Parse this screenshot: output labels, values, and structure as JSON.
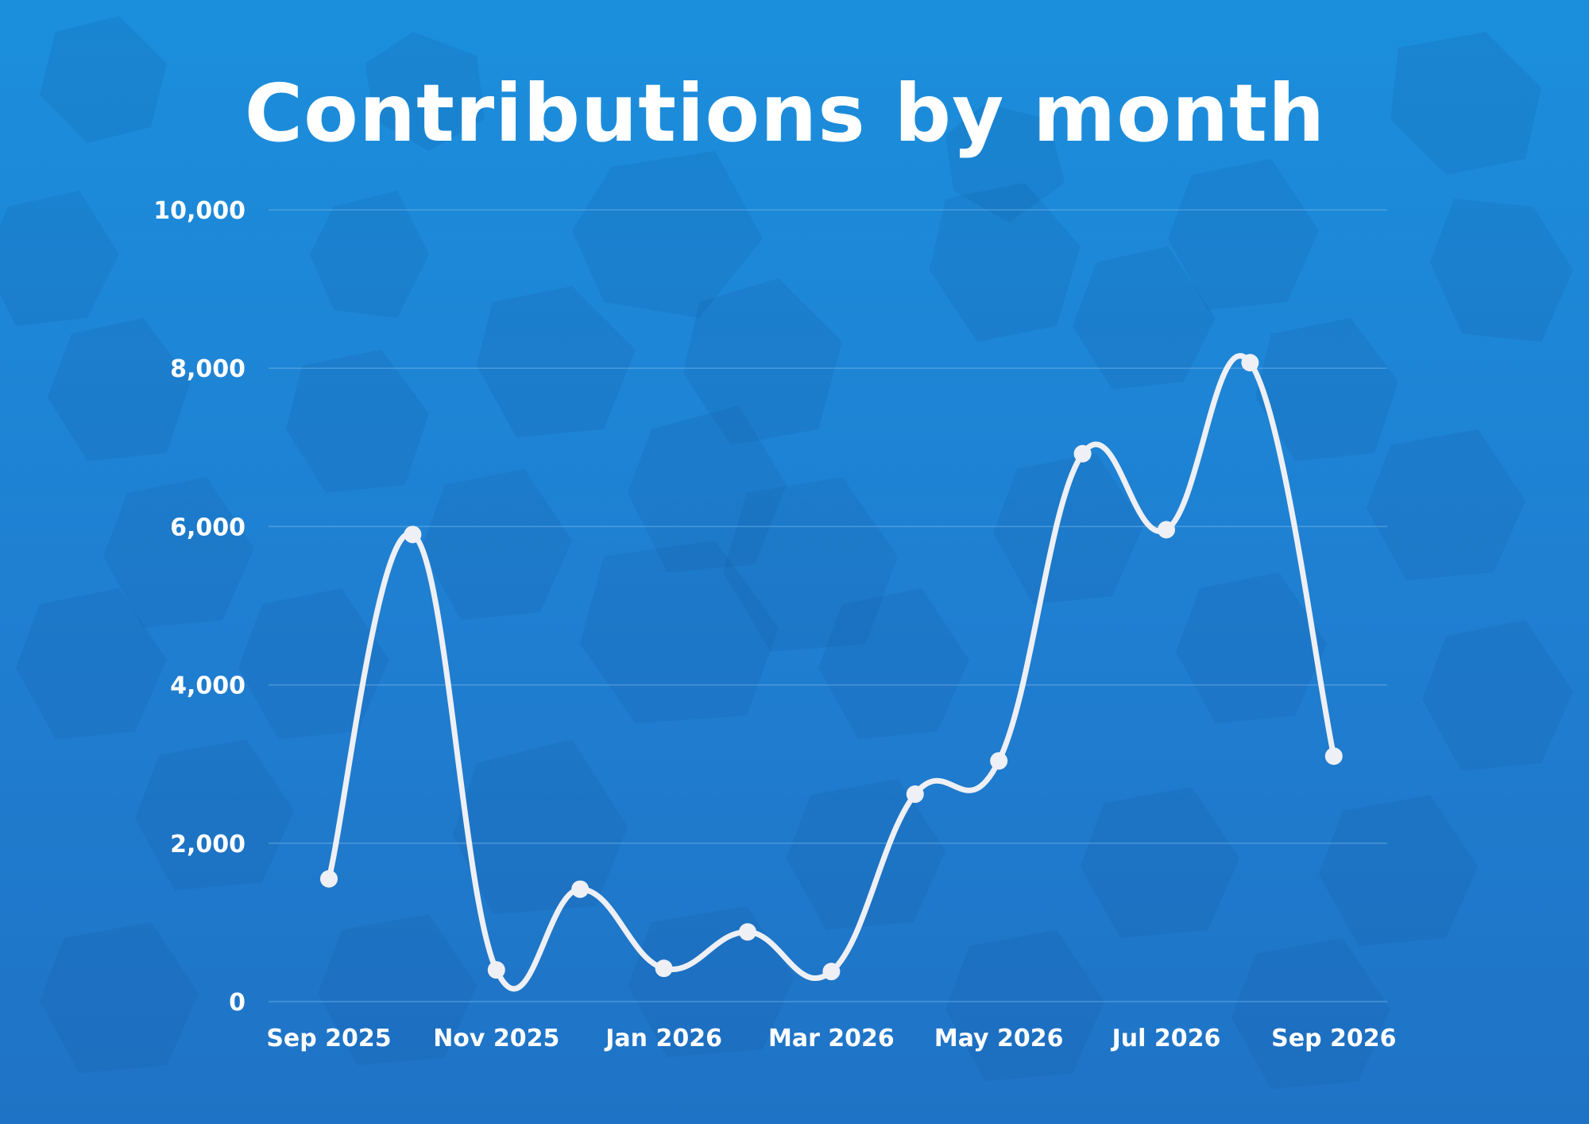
{
  "colors": {
    "background_top": "#1b8fdc",
    "background_bottom": "#1f73c6",
    "line": "#eef0f5",
    "text": "#ffffff",
    "grid": "#6fb2e6"
  },
  "chart_data": {
    "type": "line",
    "title": "Contributions by month",
    "xlabel": "",
    "ylabel": "",
    "x": [
      "Sep 2025",
      "Oct 2025",
      "Nov 2025",
      "Dec 2025",
      "Jan 2026",
      "Feb 2026",
      "Mar 2026",
      "Apr 2026",
      "May 2026",
      "Jun 2026",
      "Jul 2026",
      "Aug 2026",
      "Sep 2026"
    ],
    "x_tick_labels": [
      "Sep 2025",
      "Nov 2025",
      "Jan 2026",
      "Mar 2026",
      "May 2026",
      "Jul 2026",
      "Sep 2026"
    ],
    "y_tick_labels": [
      "0",
      "2,000",
      "4,000",
      "6,000",
      "8,000",
      "10,000"
    ],
    "ylim": [
      0,
      10000
    ],
    "grid": true,
    "series": [
      {
        "values": [
          1550,
          5900,
          400,
          1420,
          420,
          880,
          380,
          2620,
          3040,
          6920,
          5960,
          8070,
          3100
        ]
      }
    ]
  }
}
